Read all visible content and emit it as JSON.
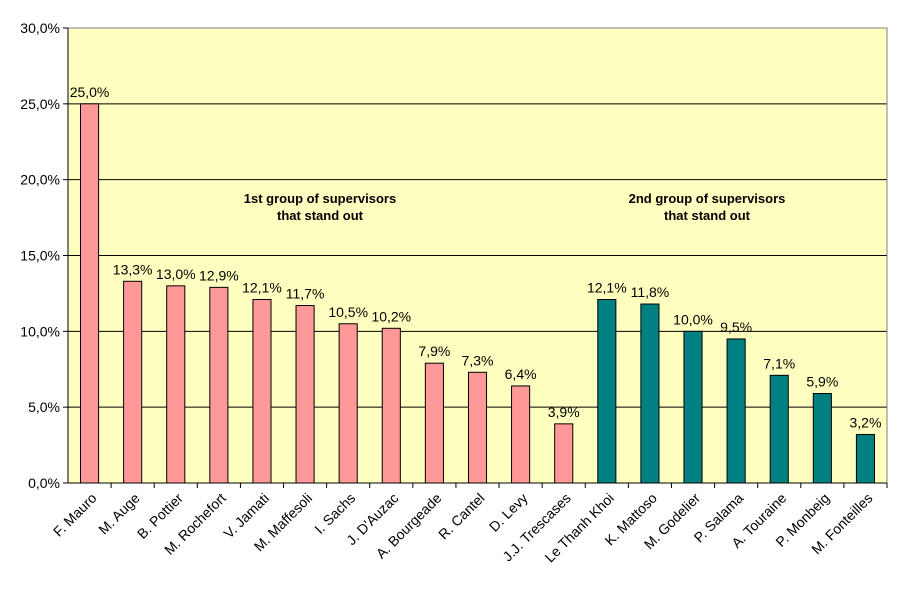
{
  "chart_data": {
    "type": "bar",
    "ylim": [
      0,
      30
    ],
    "y_ticks": [
      "0,0%",
      "5,0%",
      "10,0%",
      "15,0%",
      "20,0%",
      "25,0%",
      "30,0%"
    ],
    "grid": true,
    "plot_background": "#ffffc0",
    "categories": [
      "F. Mauro",
      "M. Auge",
      "B. Pottier",
      "M. Rochefort",
      "V. Jamati",
      "M. Maffesoli",
      "I. Sachs",
      "J. D'Auzac",
      "A. Bourgeade",
      "R. Cantel",
      "D. Levy",
      "J.J. Trescases",
      "Le Thanh Khoi",
      "K. Mattoso",
      "M. Godelier",
      "P. Salama",
      "A. Touraine",
      "P. Monbeig",
      "M. Fonteilles"
    ],
    "values": [
      25.0,
      13.3,
      13.0,
      12.9,
      12.1,
      11.7,
      10.5,
      10.2,
      7.9,
      7.3,
      6.4,
      3.9,
      12.1,
      11.8,
      10.0,
      9.5,
      7.1,
      5.9,
      3.2
    ],
    "data_labels": [
      "25,0%",
      "13,3%",
      "13,0%",
      "12,9%",
      "12,1%",
      "11,7%",
      "10,5%",
      "10,2%",
      "7,9%",
      "7,3%",
      "6,4%",
      "3,9%",
      "12,1%",
      "11,8%",
      "10,0%",
      "9,5%",
      "7,1%",
      "5,9%",
      "3,2%"
    ],
    "bar_groups": [
      0,
      0,
      0,
      0,
      0,
      0,
      0,
      0,
      0,
      0,
      0,
      0,
      1,
      1,
      1,
      1,
      1,
      1,
      1
    ],
    "group_colors": [
      "#ff9999",
      "#008080"
    ],
    "annotations": [
      {
        "line1": "1st group of supervisors",
        "line2": "that stand out"
      },
      {
        "line1": "2nd group of supervisors",
        "line2": "that stand out"
      }
    ]
  }
}
